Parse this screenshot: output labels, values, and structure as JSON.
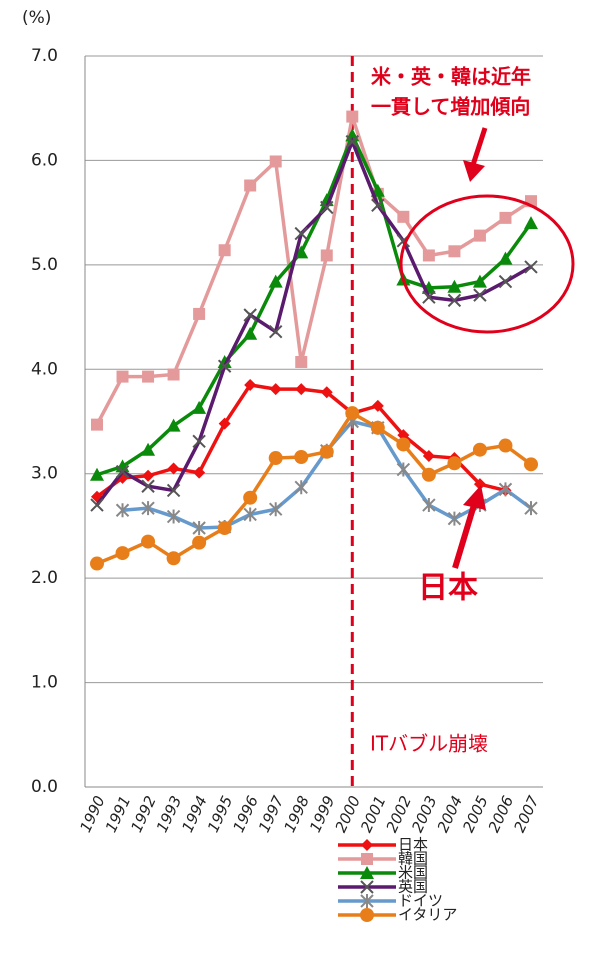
{
  "chart_data": {
    "type": "line",
    "y_unit": "(%)",
    "categories": [
      "1990",
      "1991",
      "1992",
      "1993",
      "1994",
      "1995",
      "1996",
      "1997",
      "1998",
      "1999",
      "2000",
      "2001",
      "2002",
      "2003",
      "2004",
      "2005",
      "2006",
      "2007"
    ],
    "ylim": [
      0,
      7
    ],
    "yticks": [
      {
        "value": 0,
        "label": "0.0"
      },
      {
        "value": 1,
        "label": "1.0"
      },
      {
        "value": 2,
        "label": "2.0"
      },
      {
        "value": 3,
        "label": "3.0"
      },
      {
        "value": 4,
        "label": "4.0"
      },
      {
        "value": 5,
        "label": "5.0"
      },
      {
        "value": 6,
        "label": "6.0"
      },
      {
        "value": 7,
        "label": "7.0"
      }
    ],
    "grid": true,
    "series": [
      {
        "name": "日本",
        "color": "#ee1111",
        "marker": "diamond",
        "values": [
          2.78,
          2.96,
          2.98,
          3.05,
          3.01,
          3.48,
          3.85,
          3.81,
          3.81,
          3.78,
          3.58,
          3.65,
          3.37,
          3.17,
          3.15,
          2.9,
          2.84,
          null
        ]
      },
      {
        "name": "韓国",
        "color": "#e49a9a",
        "marker": "square",
        "values": [
          3.47,
          3.93,
          3.93,
          3.95,
          4.53,
          5.14,
          5.76,
          5.99,
          4.07,
          5.09,
          6.42,
          5.68,
          5.46,
          5.09,
          5.13,
          5.28,
          5.45,
          5.61
        ]
      },
      {
        "name": "米国",
        "color": "#0a8a0a",
        "marker": "triangle",
        "values": [
          2.99,
          3.07,
          3.23,
          3.46,
          3.63,
          4.07,
          4.34,
          4.84,
          5.12,
          5.62,
          6.24,
          5.71,
          4.86,
          4.78,
          4.79,
          4.84,
          5.06,
          5.4
        ]
      },
      {
        "name": "英国",
        "color": "#5a1a6e",
        "marker": "x",
        "values": [
          2.7,
          3.02,
          2.88,
          2.84,
          3.31,
          4.03,
          4.52,
          4.36,
          5.3,
          5.55,
          6.18,
          5.57,
          5.23,
          4.69,
          4.66,
          4.71,
          4.84,
          4.98
        ]
      },
      {
        "name": "ドイツ",
        "color": "#6699cc",
        "marker": "star",
        "values": [
          null,
          2.65,
          2.67,
          2.59,
          2.48,
          2.49,
          2.61,
          2.66,
          2.87,
          3.22,
          3.5,
          3.44,
          3.04,
          2.7,
          2.57,
          2.7,
          2.85,
          2.67
        ]
      },
      {
        "name": "イタリア",
        "color": "#e87e1a",
        "marker": "circle",
        "values": [
          2.14,
          2.24,
          2.35,
          2.19,
          2.34,
          2.48,
          2.77,
          3.15,
          3.16,
          3.21,
          3.58,
          3.44,
          3.28,
          2.99,
          3.1,
          3.23,
          3.27,
          3.09
        ]
      }
    ],
    "annotations": [
      "米・英・韓は近年",
      "一貫して増加傾向",
      "日本",
      "ITバブル崩壊"
    ]
  }
}
